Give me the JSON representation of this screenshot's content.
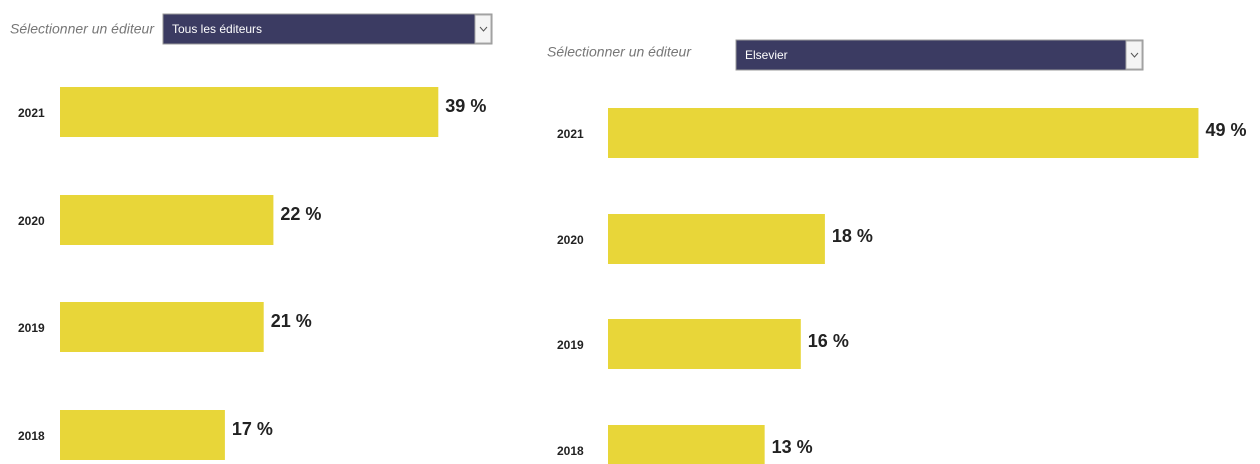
{
  "chart_data": [
    {
      "type": "barh",
      "selector_label": "Sélectionner un éditeur",
      "selector_value": "Tous les éditeurs",
      "categories": [
        "2021",
        "2020",
        "2019",
        "2018"
      ],
      "values": [
        39,
        22,
        21,
        17
      ],
      "value_labels": [
        "39 %",
        "22 %",
        "21 %",
        "17 %"
      ],
      "color": "#e8d639"
    },
    {
      "type": "barh",
      "selector_label": "Sélectionner un éditeur",
      "selector_value": "Elsevier",
      "categories": [
        "2021",
        "2020",
        "2019",
        "2018"
      ],
      "values": [
        49,
        18,
        16,
        13
      ],
      "value_labels": [
        "49 %",
        "18 %",
        "16 %",
        "13 %"
      ],
      "color": "#e8d639"
    }
  ]
}
